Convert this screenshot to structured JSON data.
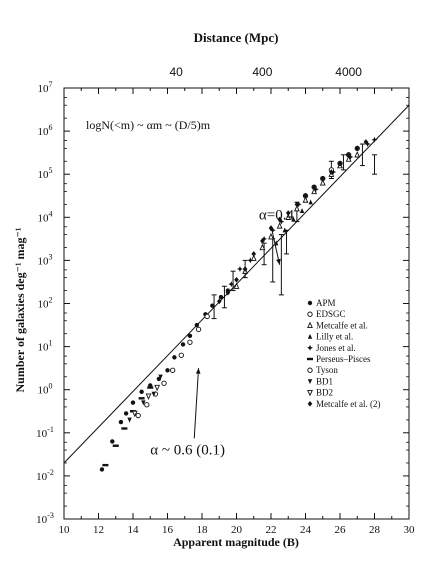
{
  "chart_data": {
    "type": "scatter",
    "top_axis_title": "Distance (Mpc)",
    "top_axis_ticks": [
      {
        "label": "40",
        "x": 16.5
      },
      {
        "label": "400",
        "x": 21.5
      },
      {
        "label": "4000",
        "x": 26.5
      }
    ],
    "xlabel": "Apparent magnitude (B)",
    "ylabel": "Number of galaxies deg⁻¹ mag⁻¹",
    "xlim": [
      10,
      30
    ],
    "ylim_log10": [
      -3,
      7
    ],
    "y_log_scale": true,
    "x_tick_labels": [
      "10",
      "12",
      "14",
      "16",
      "18",
      "20",
      "22",
      "24",
      "26",
      "28",
      "30"
    ],
    "y_tick_labels": [
      {
        "base": "10",
        "exp": "-3"
      },
      {
        "base": "10",
        "exp": "-2"
      },
      {
        "base": "10",
        "exp": "-1"
      },
      {
        "base": "10",
        "exp": "0"
      },
      {
        "base": "10",
        "exp": "1"
      },
      {
        "base": "10",
        "exp": "2"
      },
      {
        "base": "10",
        "exp": "3"
      },
      {
        "base": "10",
        "exp": "4"
      },
      {
        "base": "10",
        "exp": "5"
      },
      {
        "base": "10",
        "exp": "6"
      },
      {
        "base": "10",
        "exp": "7"
      }
    ],
    "equation": "logN(<m) ~ αm ~ (D/5)m",
    "annotations": [
      {
        "text": "α=0.4",
        "x": 21.3,
        "logy": 3.95,
        "arrow_to": [
          22.5,
          2.9
        ]
      },
      {
        "text": "α ~ 0.6 (0.1)",
        "x": 15.0,
        "logy": -1.5,
        "arrow_to": [
          17.8,
          0.5
        ]
      }
    ],
    "reference_line": {
      "x": [
        10,
        30
      ],
      "logy": [
        -1.7,
        6.6
      ]
    },
    "legend_position": "right-middle",
    "series": [
      {
        "name": "APM",
        "marker": "filled-circle",
        "points": [
          [
            12.2,
            -1.85
          ],
          [
            12.8,
            -1.2
          ],
          [
            13.3,
            -0.75
          ],
          [
            13.6,
            -0.55
          ],
          [
            14.0,
            -0.3
          ],
          [
            14.5,
            -0.05
          ],
          [
            15.0,
            0.1
          ],
          [
            15.5,
            0.25
          ],
          [
            16.0,
            0.45
          ],
          [
            16.4,
            0.75
          ],
          [
            16.9,
            1.05
          ],
          [
            17.3,
            1.25
          ],
          [
            17.7,
            1.5
          ],
          [
            18.2,
            1.75
          ],
          [
            18.6,
            1.95
          ],
          [
            19.1,
            2.15
          ],
          [
            19.5,
            2.3
          ]
        ]
      },
      {
        "name": "EDSGC",
        "marker": "open-circle",
        "points": [
          [
            14.3,
            -0.6
          ],
          [
            14.8,
            -0.35
          ],
          [
            15.3,
            -0.1
          ],
          [
            15.8,
            0.15
          ],
          [
            16.3,
            0.45
          ],
          [
            16.8,
            0.8
          ],
          [
            17.3,
            1.1
          ],
          [
            17.8,
            1.4
          ],
          [
            18.3,
            1.7
          ]
        ]
      },
      {
        "name": "Metcalfe et al.",
        "marker": "open-triangle",
        "points": [
          [
            20.0,
            2.4
          ],
          [
            20.5,
            2.75
          ],
          [
            21.0,
            3.05
          ],
          [
            21.5,
            3.3
          ],
          [
            22.0,
            3.55
          ],
          [
            22.5,
            3.8
          ],
          [
            23.0,
            4.0
          ],
          [
            23.5,
            4.2
          ],
          [
            24.0,
            4.4
          ],
          [
            24.5,
            4.6
          ],
          [
            25.0,
            4.8
          ],
          [
            25.5,
            5.0
          ],
          [
            26.0,
            5.2
          ],
          [
            26.5,
            5.35
          ],
          [
            27.0,
            5.45
          ]
        ]
      },
      {
        "name": "Lilly et al.",
        "marker": "filled-triangle",
        "points": [
          [
            22.3,
            3.4
          ],
          [
            22.8,
            3.7
          ],
          [
            23.3,
            3.95
          ],
          [
            23.8,
            4.15
          ],
          [
            24.3,
            4.35
          ]
        ]
      },
      {
        "name": "Jones et al.",
        "marker": "filled-star",
        "points": [
          [
            19.7,
            2.45
          ],
          [
            20.2,
            2.8
          ],
          [
            20.8,
            3.0
          ],
          [
            21.6,
            3.5
          ],
          [
            22.1,
            3.7
          ],
          [
            22.6,
            3.9
          ],
          [
            23.6,
            4.3
          ],
          [
            24.6,
            4.65
          ],
          [
            25.6,
            5.05
          ],
          [
            26.6,
            5.4
          ],
          [
            27.6,
            5.7
          ],
          [
            28.0,
            5.8
          ]
        ]
      },
      {
        "name": "Perseus–Pisces",
        "marker": "dash",
        "points": [
          [
            12.4,
            -1.75
          ],
          [
            13.0,
            -1.3
          ],
          [
            13.5,
            -0.9
          ],
          [
            14.0,
            -0.5
          ],
          [
            14.5,
            -0.2
          ],
          [
            15.0,
            0.05
          ]
        ]
      },
      {
        "name": "Tyson",
        "marker": "open-circle",
        "points": [
          [
            24.0,
            4.5
          ],
          [
            24.5,
            4.7
          ],
          [
            25.0,
            4.9
          ],
          [
            25.5,
            5.1
          ],
          [
            26.0,
            5.25
          ],
          [
            26.5,
            5.45
          ],
          [
            27.0,
            5.6
          ]
        ]
      },
      {
        "name": "BD1",
        "marker": "filled-triangle-down",
        "points": [
          [
            13.8,
            -0.7
          ],
          [
            14.6,
            -0.3
          ],
          [
            15.2,
            -0.1
          ],
          [
            15.6,
            0.3
          ]
        ]
      },
      {
        "name": "BD2",
        "marker": "open-triangle-down",
        "points": [
          [
            14.1,
            -0.55
          ],
          [
            14.9,
            -0.15
          ],
          [
            15.4,
            0.05
          ]
        ]
      },
      {
        "name": "Metcalfe et al. (2)",
        "marker": "filled-diamond",
        "points": [
          [
            19.0,
            2.05
          ],
          [
            19.5,
            2.25
          ],
          [
            20.0,
            2.55
          ],
          [
            20.5,
            2.8
          ],
          [
            21.0,
            3.15
          ],
          [
            21.5,
            3.45
          ],
          [
            22.0,
            3.75
          ],
          [
            22.5,
            3.95
          ],
          [
            23.0,
            4.1
          ],
          [
            23.5,
            4.3
          ],
          [
            24.0,
            4.5
          ],
          [
            24.5,
            4.7
          ],
          [
            25.0,
            4.9
          ],
          [
            25.5,
            5.05
          ],
          [
            26.0,
            5.25
          ],
          [
            26.5,
            5.45
          ],
          [
            27.0,
            5.6
          ],
          [
            27.5,
            5.75
          ]
        ]
      }
    ],
    "error_bars": [
      [
        18.7,
        1.65,
        2.2
      ],
      [
        19.3,
        1.9,
        2.4
      ],
      [
        19.8,
        2.3,
        2.75
      ],
      [
        20.5,
        2.6,
        3.0
      ],
      [
        21.6,
        2.9,
        3.4
      ],
      [
        22.1,
        2.5,
        3.5
      ],
      [
        22.6,
        2.2,
        3.6
      ],
      [
        22.9,
        3.15,
        3.7
      ],
      [
        23.5,
        3.9,
        4.35
      ],
      [
        25.5,
        4.9,
        5.3
      ],
      [
        26.2,
        5.1,
        5.45
      ],
      [
        27.3,
        5.2,
        5.7
      ],
      [
        28.0,
        5.0,
        5.45
      ]
    ]
  }
}
